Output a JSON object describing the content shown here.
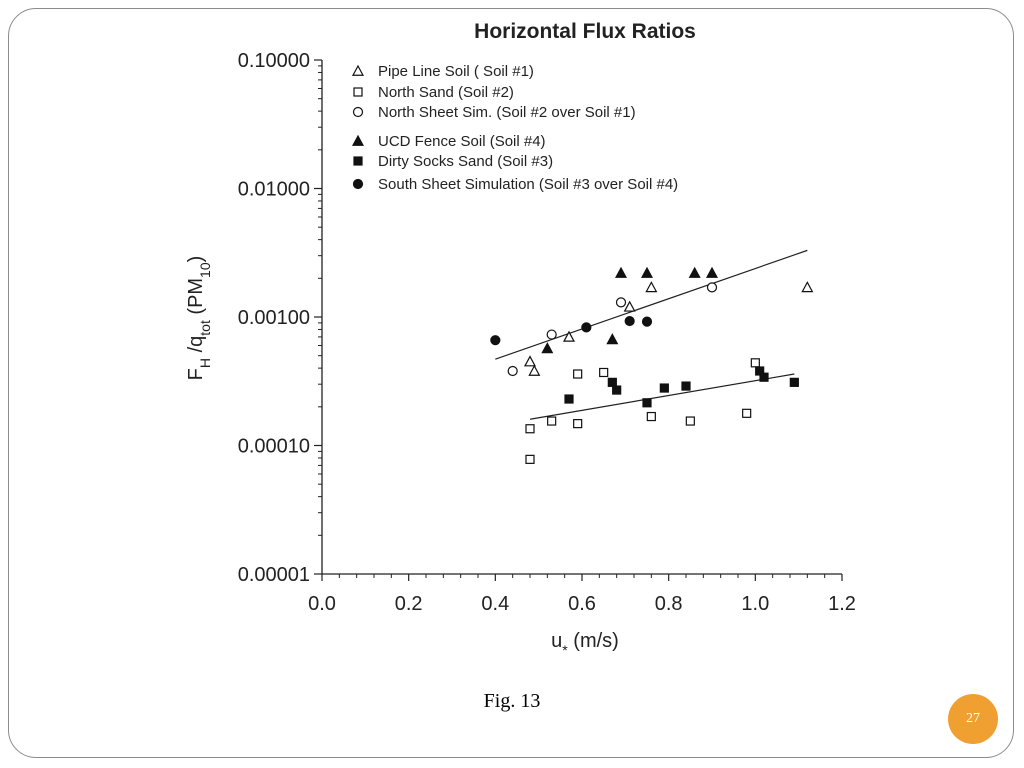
{
  "slide": {
    "caption": "Fig. 13",
    "page_number": "27",
    "badge_color": "#f0a030",
    "frame_color": "#8c8c8c"
  },
  "chart_data": {
    "type": "scatter",
    "title": "Horizontal Flux Ratios",
    "xlabel": "u* (m/s)",
    "ylabel": "FH /qtot (PM10)",
    "xlim": [
      0.0,
      1.2
    ],
    "ylim": [
      1e-05,
      0.1
    ],
    "yscale": "log",
    "x_ticks": [
      "0.0",
      "0.2",
      "0.4",
      "0.6",
      "0.8",
      "1.0",
      "1.2"
    ],
    "y_ticks": [
      "0.00001",
      "0.00010",
      "0.00100",
      "0.01000",
      "0.10000"
    ],
    "grid": false,
    "legend_position": "top-left",
    "series": [
      {
        "name": "Pipe Line Soil ( Soil #1)",
        "marker": "triangle-open",
        "points": [
          [
            0.48,
            0.00045
          ],
          [
            0.49,
            0.00038
          ],
          [
            0.57,
            0.0007
          ],
          [
            0.71,
            0.0012
          ],
          [
            0.76,
            0.0017
          ],
          [
            1.12,
            0.0017
          ]
        ]
      },
      {
        "name": "North Sand (Soil #2)",
        "marker": "square-open",
        "points": [
          [
            0.48,
            0.000135
          ],
          [
            0.48,
            7.8e-05
          ],
          [
            0.53,
            0.000155
          ],
          [
            0.59,
            0.00036
          ],
          [
            0.59,
            0.000148
          ],
          [
            0.65,
            0.00037
          ],
          [
            0.76,
            0.000168
          ],
          [
            0.85,
            0.000155
          ],
          [
            0.98,
            0.000178
          ],
          [
            1.0,
            0.00044
          ]
        ]
      },
      {
        "name": "North Sheet Sim. (Soil #2 over Soil #1)",
        "marker": "circle-open",
        "points": [
          [
            0.44,
            0.00038
          ],
          [
            0.53,
            0.00073
          ],
          [
            0.69,
            0.0013
          ],
          [
            0.9,
            0.0017
          ]
        ]
      },
      {
        "name": "UCD Fence Soil (Soil #4)",
        "marker": "triangle-filled",
        "points": [
          [
            0.52,
            0.00057
          ],
          [
            0.67,
            0.00067
          ],
          [
            0.69,
            0.0022
          ],
          [
            0.75,
            0.0022
          ],
          [
            0.86,
            0.0022
          ],
          [
            0.9,
            0.0022
          ]
        ]
      },
      {
        "name": "Dirty Socks Sand (Soil #3)",
        "marker": "square-filled",
        "points": [
          [
            0.57,
            0.00023
          ],
          [
            0.67,
            0.00031
          ],
          [
            0.68,
            0.00027
          ],
          [
            0.75,
            0.000215
          ],
          [
            0.79,
            0.00028
          ],
          [
            0.84,
            0.00029
          ],
          [
            1.01,
            0.00038
          ],
          [
            1.02,
            0.00034
          ],
          [
            1.09,
            0.00031
          ]
        ]
      },
      {
        "name": "South Sheet Simulation (Soil #3 over Soil #4)",
        "marker": "circle-filled",
        "points": [
          [
            0.4,
            0.00066
          ],
          [
            0.61,
            0.00083
          ],
          [
            0.71,
            0.00093
          ],
          [
            0.75,
            0.00092
          ]
        ]
      }
    ],
    "trend_lines": [
      {
        "from": [
          0.4,
          0.00047
        ],
        "to": [
          1.12,
          0.0033
        ]
      },
      {
        "from": [
          0.48,
          0.00016
        ],
        "to": [
          1.09,
          0.00036
        ]
      }
    ]
  }
}
